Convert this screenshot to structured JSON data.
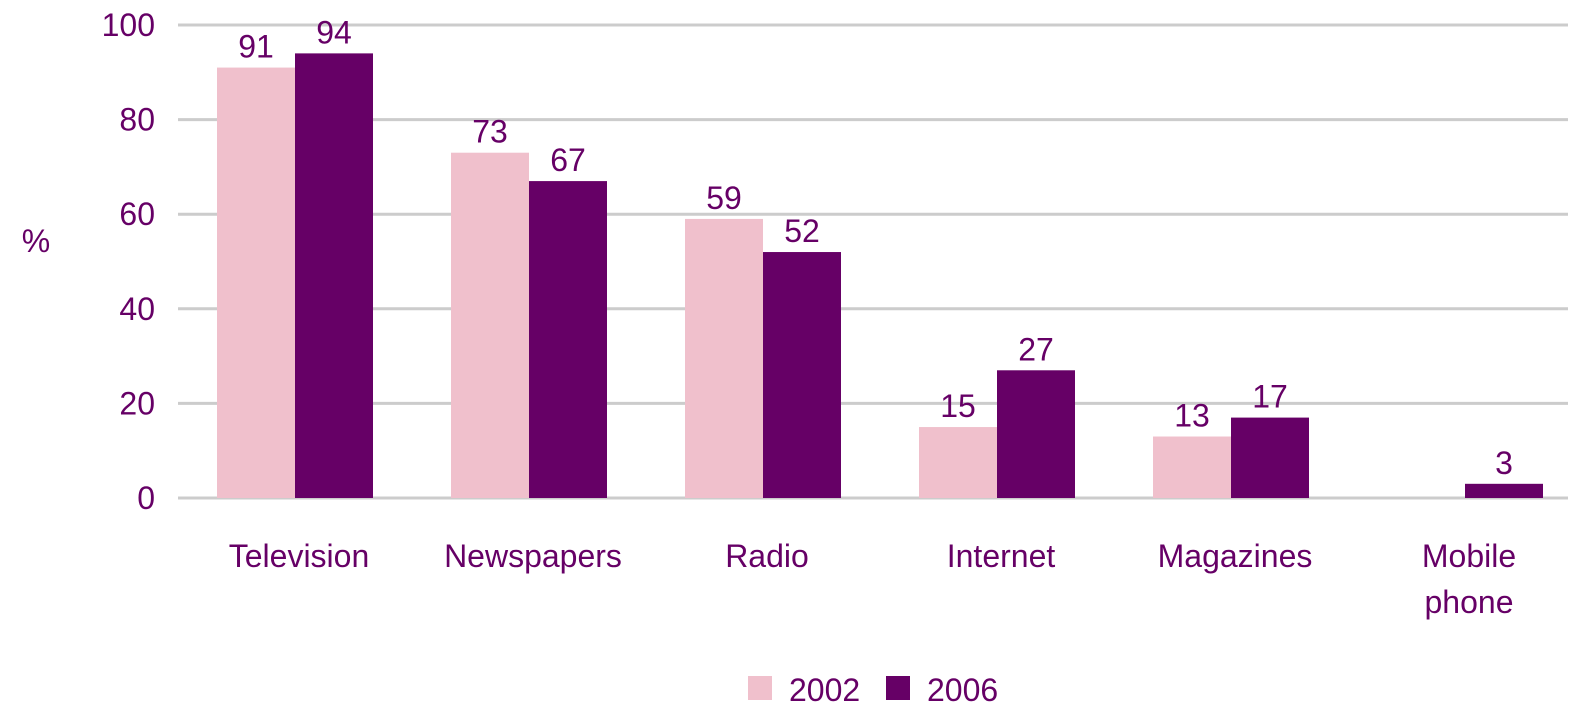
{
  "chart_data": {
    "type": "bar",
    "title": "",
    "xlabel": "",
    "ylabel": "%",
    "ylim": [
      0,
      100
    ],
    "yticks": [
      0,
      20,
      40,
      60,
      80,
      100
    ],
    "categories": [
      [
        "Television"
      ],
      [
        "Newspapers"
      ],
      [
        "Radio"
      ],
      [
        "Internet"
      ],
      [
        "Magazines"
      ],
      [
        "Mobile",
        "phone"
      ]
    ],
    "series": [
      {
        "name": "2002",
        "color": "#f0c0cc",
        "values": [
          91,
          73,
          59,
          15,
          13,
          null
        ]
      },
      {
        "name": "2006",
        "color": "#660066",
        "values": [
          94,
          67,
          52,
          27,
          17,
          3
        ]
      }
    ],
    "grid": true,
    "legend": "bottom-center",
    "colors": {
      "text": "#660066",
      "grid": "#cccccc"
    }
  }
}
